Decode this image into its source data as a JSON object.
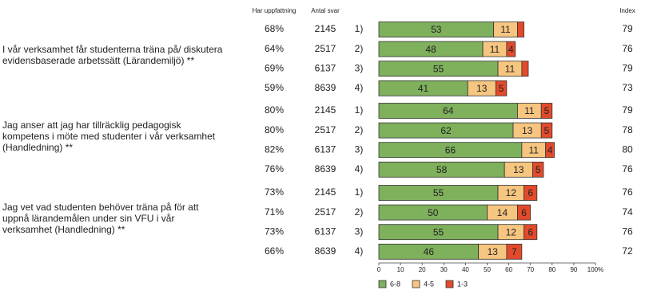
{
  "chart_data": {
    "type": "bar",
    "orientation": "horizontal",
    "stacked": true,
    "column_headers": [
      "Har uppfattning",
      "Antal svar",
      "Index"
    ],
    "questions": [
      [
        "I vår verksamhet får studenterna träna på/ diskutera",
        "evidensbaserade arbetssätt (Lärandemiljö) **"
      ],
      [
        "Jag anser att jag har tillräcklig pedagogisk",
        "kompetens i möte med studenter i vår verksamhet",
        "(Handledning) **"
      ],
      [
        "Jag vet  vad studenten behöver träna på för att",
        "uppnå lärandemålen under sin VFU i vår",
        "verksamhet (Handledning) **"
      ]
    ],
    "categories": [
      "1)",
      "2)",
      "3)",
      "4)",
      "1)",
      "2)",
      "3)",
      "4)",
      "1)",
      "2)",
      "3)",
      "4)"
    ],
    "share": [
      "68%",
      "64%",
      "69%",
      "59%",
      "80%",
      "80%",
      "82%",
      "76%",
      "73%",
      "71%",
      "73%",
      "66%"
    ],
    "answers": [
      2145,
      2517,
      6137,
      8639,
      2145,
      2517,
      6137,
      8639,
      2145,
      2517,
      6137,
      8639
    ],
    "index": [
      79,
      76,
      79,
      73,
      79,
      78,
      80,
      76,
      76,
      74,
      76,
      72
    ],
    "series": [
      {
        "name": "6-8",
        "color": "#7fb05c",
        "values": [
          53,
          48,
          55,
          41,
          64,
          62,
          66,
          58,
          55,
          50,
          55,
          46
        ]
      },
      {
        "name": "4-5",
        "color": "#f6c57f",
        "values": [
          11,
          11,
          11,
          13,
          11,
          13,
          11,
          13,
          12,
          14,
          12,
          13
        ]
      },
      {
        "name": "1-3",
        "color": "#e24a2b",
        "values": [
          3,
          4,
          3,
          5,
          5,
          5,
          4,
          5,
          6,
          6,
          6,
          7
        ],
        "value_labels": [
          null,
          "4",
          null,
          "5",
          "5",
          "5",
          "4",
          "5",
          "6",
          "6",
          "6",
          "7"
        ]
      }
    ],
    "xlim": [
      0,
      100
    ],
    "xticks": [
      0,
      10,
      20,
      30,
      40,
      50,
      60,
      70,
      80,
      90,
      {
        "value": 100,
        "label": "100%"
      }
    ]
  }
}
